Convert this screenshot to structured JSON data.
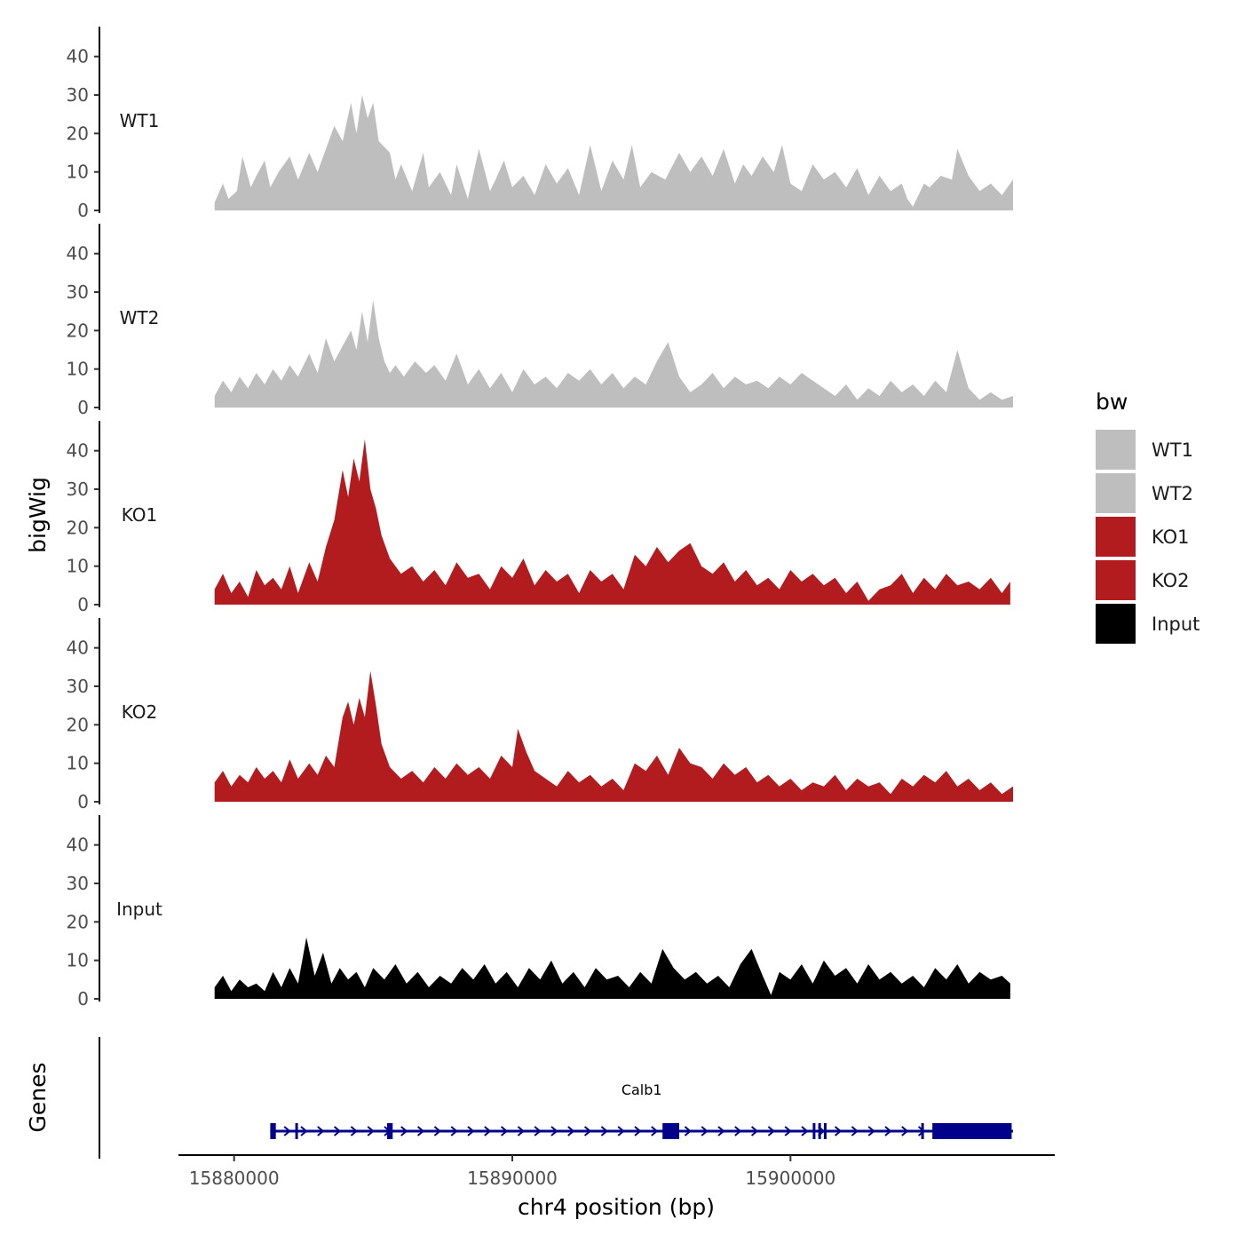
{
  "chart_data": {
    "type": "area",
    "x_label": "chr4 position (bp)",
    "y_label": "bigWig",
    "genes_label": "Genes",
    "chromosome": "chr4",
    "x_range": [
      15878000,
      15909500
    ],
    "x_ticks": [
      15880000,
      15890000,
      15900000
    ],
    "x_tick_labels": [
      "15880000",
      "15890000",
      "15900000"
    ],
    "y_range": [
      0,
      45
    ],
    "y_ticks": [
      0,
      10,
      20,
      30,
      40
    ],
    "y_tick_labels": [
      "0",
      "10",
      "20",
      "30",
      "40"
    ],
    "legend": {
      "title": "bw",
      "items": [
        {
          "label": "WT1",
          "color": "#bebebe"
        },
        {
          "label": "WT2",
          "color": "#bebebe"
        },
        {
          "label": "KO1",
          "color": "#b21c1f"
        },
        {
          "label": "KO2",
          "color": "#b21c1f"
        },
        {
          "label": "Input",
          "color": "#000000"
        }
      ]
    },
    "tracks": [
      {
        "name": "WT1",
        "color": "#bebebe",
        "x": [
          15879300,
          15879600,
          15879800,
          15880100,
          15880300,
          15880600,
          15880800,
          15881100,
          15881300,
          15881600,
          15882000,
          15882300,
          15882700,
          15883000,
          15883300,
          15883600,
          15883900,
          15884200,
          15884400,
          15884600,
          15884800,
          15885000,
          15885200,
          15885600,
          15885800,
          15886000,
          15886400,
          15886800,
          15887000,
          15887400,
          15887800,
          15888000,
          15888400,
          15888800,
          15889200,
          15889400,
          15889700,
          15890000,
          15890400,
          15890800,
          15891200,
          15891600,
          15892000,
          15892400,
          15892800,
          15893200,
          15893600,
          15894000,
          15894300,
          15894600,
          15895000,
          15895500,
          15896000,
          15896400,
          15896800,
          15897200,
          15897600,
          15898000,
          15898300,
          15898600,
          15899000,
          15899400,
          15899700,
          15900000,
          15900400,
          15900800,
          15901200,
          15901600,
          15902000,
          15902400,
          15902800,
          15903200,
          15903600,
          15904000,
          15904200,
          15904400,
          15904600,
          15904800,
          15905000,
          15905400,
          15905800,
          15906000,
          15906400,
          15906800,
          15907200,
          15907600,
          15908000
        ],
        "y": [
          2,
          7,
          3,
          5,
          14,
          6,
          9,
          13,
          6,
          10,
          14,
          8,
          15,
          10,
          16,
          22,
          18,
          28,
          20,
          30,
          24,
          28,
          18,
          15,
          8,
          12,
          5,
          15,
          6,
          10,
          4,
          12,
          3,
          16,
          5,
          8,
          13,
          6,
          9,
          4,
          12,
          7,
          11,
          4,
          17,
          5,
          13,
          8,
          17,
          6,
          10,
          8,
          15,
          10,
          14,
          9,
          16,
          7,
          12,
          9,
          14,
          10,
          17,
          7,
          5,
          12,
          8,
          10,
          6,
          11,
          4,
          9,
          5,
          7,
          3,
          1,
          4,
          7,
          6,
          9,
          8,
          16,
          9,
          5,
          7,
          4,
          8
        ]
      },
      {
        "name": "WT2",
        "color": "#bebebe",
        "x": [
          15879300,
          15879600,
          15879900,
          15880200,
          15880500,
          15880800,
          15881100,
          15881400,
          15881700,
          15882000,
          15882300,
          15882700,
          15883000,
          15883300,
          15883600,
          15883900,
          15884200,
          15884400,
          15884600,
          15884800,
          15885000,
          15885200,
          15885400,
          15885600,
          15885800,
          15886100,
          15886500,
          15886900,
          15887200,
          15887600,
          15888000,
          15888400,
          15888800,
          15889200,
          15889600,
          15890000,
          15890400,
          15890800,
          15891200,
          15891600,
          15892000,
          15892400,
          15892800,
          15893200,
          15893600,
          15894000,
          15894400,
          15894800,
          15895200,
          15895600,
          15896000,
          15896400,
          15896800,
          15897200,
          15897600,
          15898000,
          15898400,
          15898800,
          15899200,
          15899600,
          15900000,
          15900400,
          15900800,
          15901200,
          15901600,
          15902000,
          15902400,
          15902800,
          15903200,
          15903600,
          15904000,
          15904400,
          15904800,
          15905200,
          15905600,
          15906000,
          15906400,
          15906800,
          15907200,
          15907600,
          15908000
        ],
        "y": [
          3,
          7,
          4,
          8,
          5,
          9,
          6,
          10,
          7,
          11,
          8,
          14,
          9,
          18,
          12,
          16,
          20,
          15,
          25,
          17,
          28,
          18,
          12,
          9,
          11,
          8,
          12,
          9,
          11,
          7,
          14,
          6,
          10,
          5,
          9,
          4,
          10,
          6,
          8,
          5,
          9,
          7,
          10,
          6,
          9,
          5,
          8,
          6,
          12,
          17,
          8,
          4,
          6,
          9,
          5,
          8,
          6,
          7,
          5,
          8,
          6,
          9,
          7,
          5,
          3,
          6,
          2,
          5,
          3,
          7,
          4,
          6,
          3,
          7,
          4,
          15,
          5,
          2,
          4,
          2,
          3
        ]
      },
      {
        "name": "KO1",
        "color": "#b21c1f",
        "x": [
          15879300,
          15879600,
          15879900,
          15880200,
          15880500,
          15880800,
          15881100,
          15881400,
          15881700,
          15882000,
          15882300,
          15882700,
          15883000,
          15883300,
          15883600,
          15883900,
          15884100,
          15884300,
          15884500,
          15884700,
          15884900,
          15885100,
          15885300,
          15885600,
          15886000,
          15886400,
          15886800,
          15887200,
          15887600,
          15888000,
          15888400,
          15888800,
          15889200,
          15889600,
          15890000,
          15890400,
          15890800,
          15891200,
          15891600,
          15892000,
          15892400,
          15892800,
          15893200,
          15893600,
          15894000,
          15894400,
          15894800,
          15895200,
          15895600,
          15896000,
          15896400,
          15896800,
          15897200,
          15897600,
          15898000,
          15898400,
          15898800,
          15899200,
          15899600,
          15900000,
          15900400,
          15900800,
          15901200,
          15901600,
          15902000,
          15902400,
          15902800,
          15903200,
          15903600,
          15904000,
          15904400,
          15904800,
          15905200,
          15905600,
          15906000,
          15906400,
          15906800,
          15907200,
          15907600,
          15907900
        ],
        "y": [
          4,
          8,
          3,
          6,
          2,
          9,
          5,
          7,
          4,
          10,
          3,
          11,
          6,
          15,
          22,
          35,
          28,
          38,
          32,
          43,
          30,
          25,
          18,
          12,
          8,
          10,
          6,
          9,
          5,
          11,
          7,
          8,
          4,
          10,
          7,
          12,
          5,
          9,
          6,
          8,
          3,
          9,
          6,
          8,
          4,
          13,
          10,
          15,
          11,
          14,
          16,
          10,
          8,
          11,
          6,
          9,
          5,
          7,
          4,
          9,
          6,
          8,
          5,
          7,
          3,
          6,
          1,
          4,
          5,
          8,
          3,
          7,
          4,
          8,
          5,
          6,
          4,
          7,
          3,
          6
        ]
      },
      {
        "name": "KO2",
        "color": "#b21c1f",
        "x": [
          15879300,
          15879600,
          15879900,
          15880200,
          15880500,
          15880800,
          15881100,
          15881400,
          15881700,
          15882000,
          15882300,
          15882700,
          15883000,
          15883300,
          15883600,
          15883900,
          15884100,
          15884300,
          15884500,
          15884700,
          15884900,
          15885100,
          15885300,
          15885600,
          15886000,
          15886400,
          15886800,
          15887200,
          15887600,
          15888000,
          15888400,
          15888800,
          15889200,
          15889600,
          15890000,
          15890200,
          15890500,
          15890800,
          15891200,
          15891600,
          15892000,
          15892400,
          15892800,
          15893200,
          15893600,
          15894000,
          15894400,
          15894800,
          15895200,
          15895600,
          15896000,
          15896400,
          15896800,
          15897200,
          15897600,
          15898000,
          15898400,
          15898800,
          15899200,
          15899600,
          15900000,
          15900400,
          15900800,
          15901200,
          15901600,
          15902000,
          15902400,
          15902800,
          15903200,
          15903600,
          15904000,
          15904400,
          15904800,
          15905200,
          15905600,
          15906000,
          15906400,
          15906800,
          15907200,
          15907600,
          15908000
        ],
        "y": [
          5,
          8,
          4,
          7,
          5,
          9,
          6,
          8,
          5,
          11,
          6,
          10,
          7,
          12,
          9,
          22,
          26,
          20,
          27,
          22,
          34,
          25,
          15,
          9,
          6,
          8,
          5,
          9,
          6,
          10,
          7,
          9,
          6,
          12,
          9,
          19,
          13,
          8,
          6,
          4,
          8,
          5,
          7,
          4,
          6,
          3,
          10,
          8,
          12,
          7,
          14,
          10,
          9,
          6,
          10,
          7,
          9,
          5,
          7,
          4,
          6,
          3,
          5,
          4,
          7,
          3,
          6,
          4,
          5,
          2,
          6,
          4,
          7,
          5,
          8,
          4,
          6,
          3,
          5,
          2,
          4
        ]
      },
      {
        "name": "Input",
        "color": "#000000",
        "x": [
          15879300,
          15879600,
          15879900,
          15880200,
          15880500,
          15880800,
          15881100,
          15881400,
          15881700,
          15882000,
          15882300,
          15882600,
          15882900,
          15883200,
          15883500,
          15883800,
          15884100,
          15884400,
          15884700,
          15885000,
          15885400,
          15885800,
          15886200,
          15886600,
          15887000,
          15887400,
          15887800,
          15888200,
          15888600,
          15889000,
          15889400,
          15889800,
          15890200,
          15890600,
          15891000,
          15891400,
          15891800,
          15892200,
          15892600,
          15893000,
          15893400,
          15893800,
          15894200,
          15894600,
          15895000,
          15895400,
          15895800,
          15896200,
          15896600,
          15897000,
          15897400,
          15897800,
          15898200,
          15898600,
          15899000,
          15899300,
          15899600,
          15900000,
          15900400,
          15900800,
          15901200,
          15901600,
          15902000,
          15902400,
          15902800,
          15903200,
          15903600,
          15904000,
          15904400,
          15904800,
          15905200,
          15905600,
          15906000,
          15906400,
          15906800,
          15907200,
          15907600,
          15907900
        ],
        "y": [
          3,
          6,
          2,
          5,
          3,
          4,
          2,
          7,
          3,
          8,
          4,
          16,
          6,
          12,
          4,
          8,
          5,
          7,
          3,
          8,
          5,
          9,
          4,
          7,
          3,
          6,
          4,
          8,
          5,
          9,
          4,
          7,
          3,
          8,
          5,
          10,
          4,
          7,
          3,
          8,
          5,
          6,
          3,
          7,
          4,
          13,
          8,
          5,
          7,
          4,
          6,
          3,
          9,
          13,
          6,
          1,
          7,
          5,
          9,
          4,
          10,
          6,
          8,
          4,
          9,
          5,
          7,
          4,
          6,
          3,
          8,
          5,
          9,
          4,
          7,
          5,
          6,
          4
        ]
      }
    ],
    "gene": {
      "name": "Calb1",
      "color": "#00008b",
      "start": 15881300,
      "end": 15908000,
      "strand": "+",
      "exons": [
        [
          15881300,
          15881500
        ],
        [
          15882200,
          15882250
        ],
        [
          15885500,
          15885700
        ],
        [
          15895400,
          15896000
        ],
        [
          15900800,
          15900850
        ],
        [
          15901000,
          15901050
        ],
        [
          15901200,
          15901250
        ],
        [
          15904700,
          15904750
        ],
        [
          15905100,
          15907950
        ]
      ]
    }
  }
}
